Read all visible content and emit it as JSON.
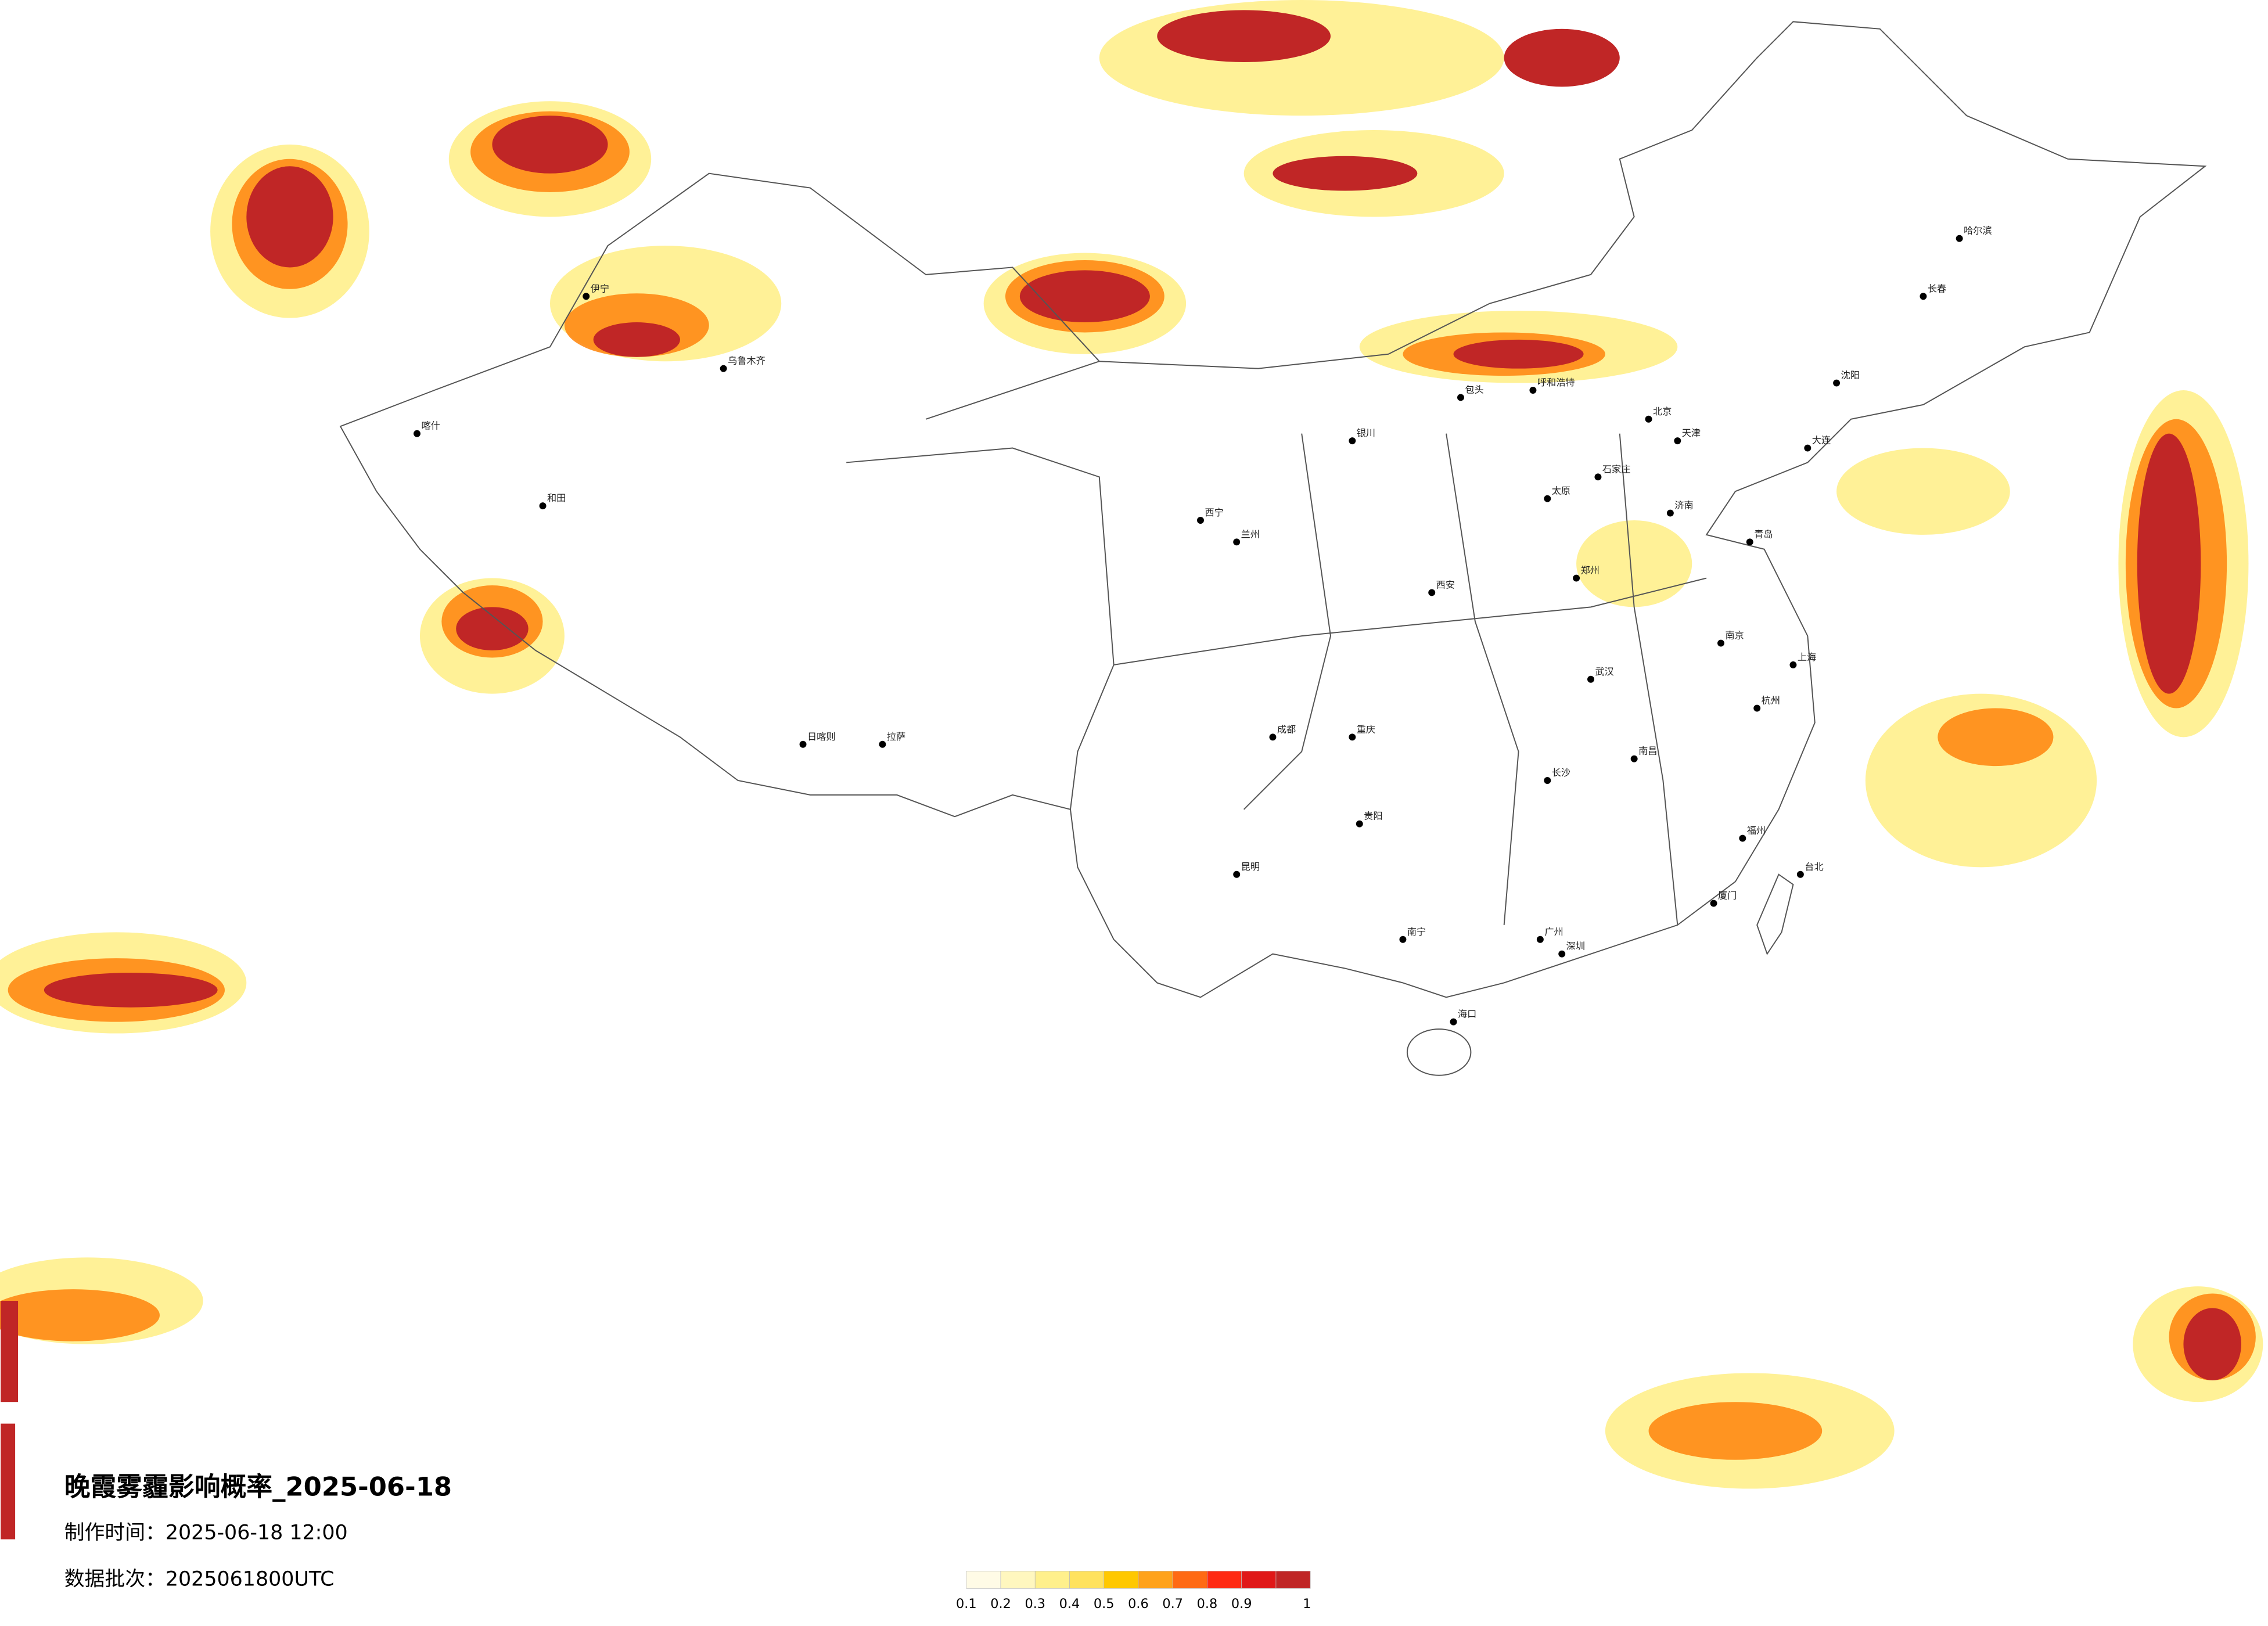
{
  "header": {
    "title": "晚霞雾霾影响概率_2025-06-18",
    "made_time": "制作时间：2025-06-18 12:00",
    "batch": "数据批次：2025061800UTC"
  },
  "legend": {
    "colors": [
      "#fffbe6",
      "#fff7bf",
      "#fff08c",
      "#ffe25e",
      "#ffc800",
      "#ffa21a",
      "#ff6a14",
      "#ff2a12",
      "#e01818",
      "#c02626"
    ],
    "ticks": [
      0.1,
      0.2,
      0.3,
      0.4,
      0.5,
      0.6,
      0.7,
      0.8,
      0.9,
      1
    ]
  },
  "cities": [
    "北京",
    "天津",
    "石家庄",
    "太原",
    "济南",
    "郑州",
    "西安",
    "武汉",
    "长沙",
    "南昌",
    "南京",
    "上海",
    "杭州",
    "福州",
    "广州",
    "南宁",
    "海口",
    "昆明",
    "贵阳",
    "成都",
    "重庆",
    "兰州",
    "西宁",
    "银川",
    "呼和浩特",
    "哈尔滨",
    "长春",
    "沈阳",
    "拉萨",
    "乌鲁木齐",
    "台北",
    "包头",
    "大连",
    "青岛",
    "厦门",
    "深圳",
    "日喀则",
    "和田",
    "喀什",
    "伊宁"
  ]
}
